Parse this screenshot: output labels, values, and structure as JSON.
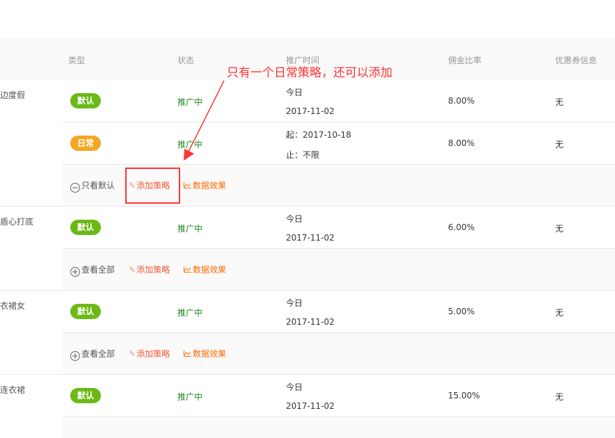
{
  "header": {
    "columns": [
      "类型",
      "状态",
      "推广时间",
      "佣金比率",
      "优惠券信息"
    ]
  },
  "colors": {
    "default_badge": "#6ab915",
    "daily_badge": "#f5a623",
    "status": "#1e8a1e",
    "annotation": "#ff3333",
    "edit_link": "#f25a3c",
    "data_link": "#ff6a00"
  },
  "groups": [
    {
      "name": "边度假",
      "rows": [
        {
          "type": "默认",
          "type_kind": "default",
          "status": "推广中",
          "time1": "今日",
          "time2": "2017-11-02",
          "rate": "8.00%",
          "coupon": "无"
        },
        {
          "type": "日常",
          "type_kind": "daily",
          "status": "推广中",
          "time1": "起：2017-10-18",
          "time2": "止：不限",
          "rate": "8.00%",
          "coupon": "无"
        }
      ],
      "actions": {
        "toggle_icon": "minus-circle-icon",
        "toggle": "只看默认",
        "add": "添加策略",
        "data": "数据效果"
      }
    },
    {
      "name": "盾心打底",
      "rows": [
        {
          "type": "默认",
          "type_kind": "default",
          "status": "推广中",
          "time1": "今日",
          "time2": "2017-11-02",
          "rate": "6.00%",
          "coupon": "无"
        }
      ],
      "actions": {
        "toggle_icon": "plus-circle-icon",
        "toggle": "查看全部",
        "add": "添加策略",
        "data": "数据效果"
      }
    },
    {
      "name": "衣裙女",
      "rows": [
        {
          "type": "默认",
          "type_kind": "default",
          "status": "推广中",
          "time1": "今日",
          "time2": "2017-11-02",
          "rate": "5.00%",
          "coupon": "无"
        }
      ],
      "actions": {
        "toggle_icon": "plus-circle-icon",
        "toggle": "查看全部",
        "add": "添加策略",
        "data": "数据效果"
      }
    },
    {
      "name": "连衣裙",
      "rows": [
        {
          "type": "默认",
          "type_kind": "default",
          "status": "推广中",
          "time1": "今日",
          "time2": "2017-11-02",
          "rate": "15.00%",
          "coupon": "无"
        }
      ]
    }
  ],
  "annotation": {
    "text": "只有一个日常策略，还可以添加"
  }
}
